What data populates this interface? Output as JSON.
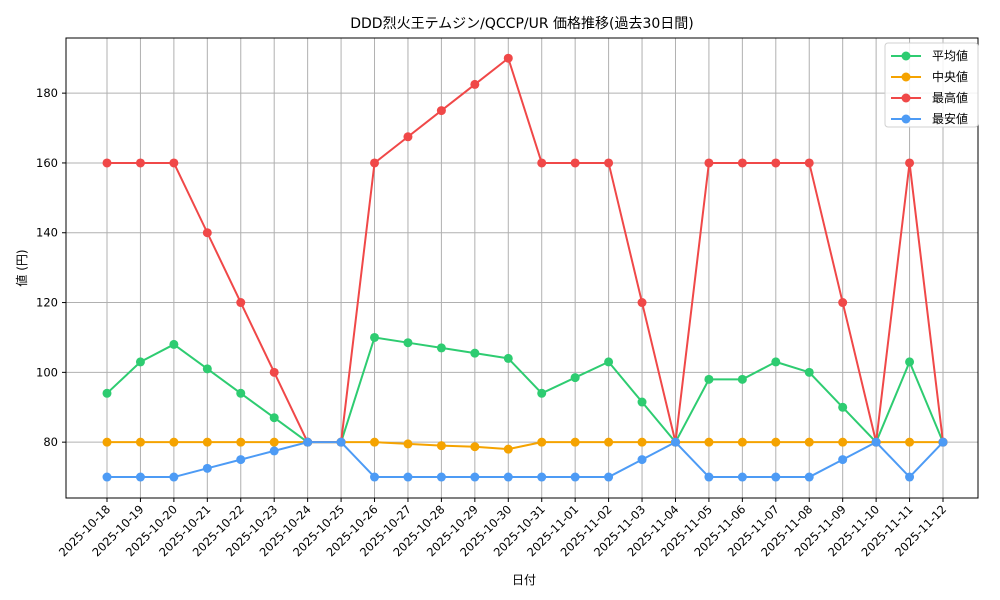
{
  "chart_data": {
    "type": "line",
    "title": "DDD烈火王テムジン/QCCP/UR 価格推移(過去30日間)",
    "xlabel": "日付",
    "ylabel": "値 (円)",
    "ylim": [
      64,
      195.8
    ],
    "yticks": [
      80,
      100,
      120,
      140,
      160,
      180
    ],
    "grid": true,
    "legend_position": "upper right",
    "categories": [
      "2025-10-18",
      "2025-10-19",
      "2025-10-20",
      "2025-10-21",
      "2025-10-22",
      "2025-10-23",
      "2025-10-24",
      "2025-10-25",
      "2025-10-26",
      "2025-10-27",
      "2025-10-28",
      "2025-10-29",
      "2025-10-30",
      "2025-10-31",
      "2025-11-01",
      "2025-11-02",
      "2025-11-03",
      "2025-11-04",
      "2025-11-05",
      "2025-11-06",
      "2025-11-07",
      "2025-11-08",
      "2025-11-09",
      "2025-11-10",
      "2025-11-11",
      "2025-11-12"
    ],
    "series": [
      {
        "name": "平均値",
        "color": "#2ecc71",
        "values": [
          94,
          103,
          108,
          101,
          94,
          87,
          80,
          80,
          110,
          108.5,
          107,
          105.5,
          104,
          94,
          98.5,
          103,
          91.5,
          80,
          98,
          98,
          103,
          100,
          90,
          80,
          103,
          80
        ]
      },
      {
        "name": "中央値",
        "color": "#f5a300",
        "values": [
          80,
          80,
          80,
          80,
          80,
          80,
          80,
          80,
          80,
          79.5,
          79,
          78.7,
          78,
          80,
          80,
          80,
          80,
          80,
          80,
          80,
          80,
          80,
          80,
          80,
          80,
          80
        ]
      },
      {
        "name": "最高値",
        "color": "#f04848",
        "values": [
          160,
          160,
          160,
          140,
          120,
          100,
          80,
          80,
          160,
          167.5,
          175,
          182.5,
          190,
          160,
          160,
          160,
          120,
          80,
          160,
          160,
          160,
          160,
          120,
          80,
          160,
          80
        ]
      },
      {
        "name": "最安値",
        "color": "#4d9bf5",
        "values": [
          70,
          70,
          70,
          72.5,
          75,
          77.5,
          80,
          80,
          70,
          70,
          70,
          70,
          70,
          70,
          70,
          70,
          75,
          80,
          70,
          70,
          70,
          70,
          75,
          80,
          70,
          80
        ]
      }
    ]
  }
}
